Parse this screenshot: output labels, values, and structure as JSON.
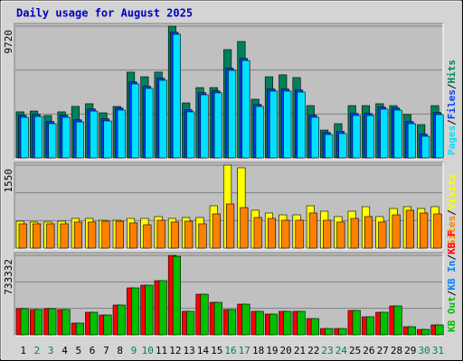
{
  "title": "Daily usage for August 2025",
  "separator": "/",
  "chart_data": [
    {
      "type": "bar",
      "ylim": [
        0,
        9720
      ],
      "yticks": [
        9720
      ],
      "series": [
        {
          "name": "Hits",
          "color": "#00805c",
          "values": [
            3400,
            3460,
            3130,
            3400,
            3800,
            4000,
            3330,
            3800,
            6330,
            5990,
            6330,
            9720,
            4060,
            5190,
            5190,
            7990,
            8590,
            4330,
            5990,
            6130,
            5930,
            3860,
            2060,
            2530,
            3860,
            3860,
            4000,
            3860,
            3200,
            2460,
            3860
          ]
        },
        {
          "name": "Files",
          "color": "#0040ff",
          "values": [
            3150,
            3210,
            2680,
            3150,
            2810,
            3610,
            2880,
            3680,
            5610,
            5280,
            5880,
            9270,
            3550,
            4810,
            4950,
            6610,
            7340,
            3950,
            5080,
            5080,
            5010,
            3150,
            1880,
            1950,
            3280,
            3280,
            3750,
            3680,
            2680,
            1750,
            3350
          ]
        },
        {
          "name": "Pages",
          "color": "#00e0ff",
          "values": [
            3000,
            3060,
            2530,
            3000,
            2660,
            3460,
            2730,
            3530,
            5460,
            5130,
            5730,
            9120,
            3400,
            4660,
            4800,
            6460,
            7190,
            3800,
            4930,
            4930,
            4860,
            3000,
            1730,
            1800,
            3130,
            3130,
            3600,
            3530,
            2530,
            1600,
            3200
          ]
        }
      ]
    },
    {
      "type": "bar",
      "ylim": [
        0,
        1550
      ],
      "yticks": [
        1550
      ],
      "series": [
        {
          "name": "Visits",
          "color": "#ffff00",
          "values": [
            505,
            489,
            489,
            505,
            556,
            556,
            522,
            522,
            556,
            556,
            590,
            556,
            573,
            573,
            792,
            1550,
            1500,
            708,
            657,
            623,
            623,
            792,
            691,
            590,
            691,
            775,
            590,
            741,
            775,
            741,
            775
          ]
        },
        {
          "name": "Sites",
          "color": "#ff8000",
          "values": [
            455,
            455,
            455,
            455,
            489,
            489,
            505,
            505,
            472,
            438,
            522,
            489,
            505,
            455,
            640,
            826,
            758,
            573,
            556,
            522,
            522,
            657,
            522,
            489,
            556,
            590,
            489,
            623,
            708,
            657,
            640
          ]
        }
      ]
    },
    {
      "type": "bar",
      "ylim": [
        0,
        733332
      ],
      "yticks": [
        733332
      ],
      "categories": [
        "1",
        "2",
        "3",
        "4",
        "5",
        "6",
        "7",
        "8",
        "9",
        "10",
        "11",
        "12",
        "13",
        "14",
        "15",
        "16",
        "17",
        "18",
        "19",
        "20",
        "21",
        "22",
        "23",
        "24",
        "25",
        "26",
        "27",
        "28",
        "29",
        "30",
        "31"
      ],
      "category_colors": [
        "#000000",
        "#00805c",
        "#00805c",
        "#000000",
        "#000000",
        "#000000",
        "#000000",
        "#000000",
        "#00805c",
        "#00805c",
        "#000000",
        "#000000",
        "#000000",
        "#000000",
        "#000000",
        "#00805c",
        "#00805c",
        "#000000",
        "#000000",
        "#000000",
        "#000000",
        "#000000",
        "#00805c",
        "#00805c",
        "#000000",
        "#000000",
        "#000000",
        "#000000",
        "#000000",
        "#00805c",
        "#00805c"
      ],
      "series": [
        {
          "name": "KB F",
          "color": "#ff0000",
          "values": [
            241700,
            233300,
            241700,
            233300,
            108300,
            208300,
            183300,
            275000,
            433300,
            458300,
            500000,
            733332,
            216700,
            375000,
            300000,
            233300,
            283300,
            216700,
            191700,
            216700,
            216700,
            150000,
            58300,
            58300,
            225000,
            166700,
            208300,
            266700,
            75000,
            50000,
            91700
          ]
        },
        {
          "name": "KB In",
          "color": "#0080ff",
          "values": [
            0,
            0,
            0,
            0,
            0,
            0,
            0,
            0,
            0,
            0,
            0,
            0,
            0,
            0,
            0,
            0,
            0,
            0,
            0,
            0,
            0,
            0,
            0,
            0,
            0,
            0,
            0,
            0,
            0,
            0,
            0
          ]
        },
        {
          "name": "KB Out",
          "color": "#00c000",
          "values": [
            241700,
            233300,
            241700,
            233300,
            108300,
            208300,
            183300,
            275000,
            433300,
            458300,
            500000,
            725000,
            216700,
            375000,
            300000,
            233300,
            283300,
            216700,
            191700,
            216700,
            216700,
            150000,
            58300,
            58300,
            225000,
            166700,
            208300,
            266700,
            75000,
            50000,
            91700
          ]
        }
      ]
    }
  ]
}
